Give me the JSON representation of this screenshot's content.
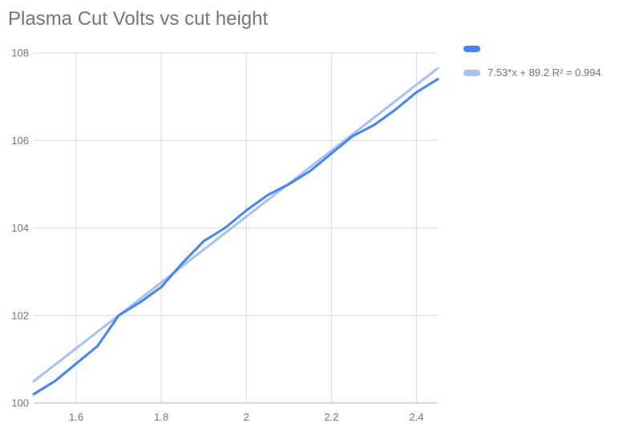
{
  "title": "Plasma Cut Volts vs cut height",
  "legend": {
    "series_label": "",
    "trendline_label": "7.53*x + 89.2 R² = 0.994"
  },
  "chart_data": {
    "type": "line",
    "title": "Plasma Cut Volts vs cut height",
    "x": [
      1.5,
      1.55,
      1.6,
      1.65,
      1.7,
      1.75,
      1.8,
      1.85,
      1.9,
      1.95,
      2.0,
      2.05,
      2.1,
      2.15,
      2.2,
      2.25,
      2.3,
      2.35,
      2.4,
      2.45
    ],
    "series": [
      {
        "name": "",
        "color": "#4285f4",
        "values": [
          100.2,
          100.5,
          100.9,
          101.3,
          102.0,
          102.3,
          102.65,
          103.2,
          103.7,
          104.0,
          104.4,
          104.75,
          105.0,
          105.3,
          105.7,
          106.1,
          106.35,
          106.7,
          107.1,
          107.4
        ]
      }
    ],
    "trendline": {
      "label": "7.53*x + 89.2 R² = 0.994",
      "slope": 7.53,
      "intercept": 89.2,
      "r2": 0.994,
      "color": "#a4c2f4"
    },
    "xlim": [
      1.5,
      2.45
    ],
    "ylim": [
      100,
      108
    ],
    "x_ticks": [
      1.6,
      1.8,
      2,
      2.2,
      2.4
    ],
    "x_tick_labels": [
      "1.6",
      "1.8",
      "2",
      "2.2",
      "2.4"
    ],
    "y_ticks": [
      100,
      102,
      104,
      106,
      108
    ],
    "y_tick_labels": [
      "100",
      "102",
      "104",
      "106",
      "108"
    ],
    "grid": true,
    "legend_position": "top-right",
    "tick_label_color": "#757575",
    "gridline_color": "#dadada",
    "baseline_color": "#b3b3b3"
  }
}
